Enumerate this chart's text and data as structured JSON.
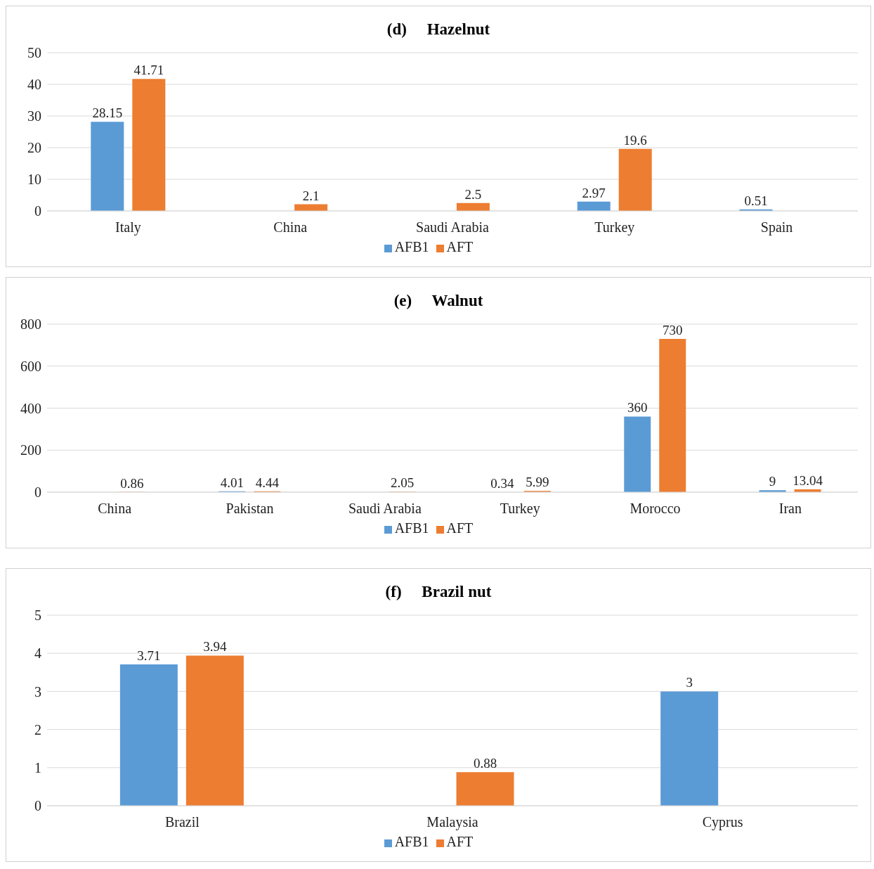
{
  "chart_data": [
    {
      "type": "bar",
      "title": "(d)     Hazelnut",
      "categories": [
        "Italy",
        "China",
        "Saudi Arabia",
        "Turkey",
        "Spain"
      ],
      "series": [
        {
          "name": "AFB1",
          "color": "#5b9bd5",
          "values": [
            28.15,
            null,
            null,
            2.97,
            0.51
          ]
        },
        {
          "name": "AFT",
          "color": "#ed7d31",
          "values": [
            41.71,
            2.1,
            2.5,
            19.6,
            null
          ]
        }
      ],
      "ylim": [
        0,
        50
      ],
      "yticks": [
        0,
        10,
        20,
        30,
        40,
        50
      ],
      "grid": "y",
      "legend": "bottom",
      "data_labels": true
    },
    {
      "type": "bar",
      "title": "(e)     Walnut",
      "categories": [
        "China",
        "Pakistan",
        "Saudi Arabia",
        "Turkey",
        "Morocco",
        "Iran"
      ],
      "series": [
        {
          "name": "AFB1",
          "color": "#5b9bd5",
          "values": [
            null,
            4.01,
            null,
            0.34,
            360,
            9
          ]
        },
        {
          "name": "AFT",
          "color": "#ed7d31",
          "values": [
            0.86,
            4.44,
            2.05,
            5.99,
            730,
            13.04
          ]
        }
      ],
      "ylim": [
        0,
        800
      ],
      "yticks": [
        0,
        200,
        400,
        600,
        800
      ],
      "grid": "y",
      "legend": "bottom",
      "data_labels": true
    },
    {
      "type": "bar",
      "title": "(f)     Brazil nut",
      "categories": [
        "Brazil",
        "Malaysia",
        "Cyprus"
      ],
      "series": [
        {
          "name": "AFB1",
          "color": "#5b9bd5",
          "values": [
            3.71,
            null,
            3
          ]
        },
        {
          "name": "AFT",
          "color": "#ed7d31",
          "values": [
            3.94,
            0.88,
            null
          ]
        }
      ],
      "ylim": [
        0,
        5
      ],
      "yticks": [
        0,
        1,
        2,
        3,
        4,
        5
      ],
      "grid": "y",
      "legend": "bottom",
      "data_labels": true
    }
  ]
}
